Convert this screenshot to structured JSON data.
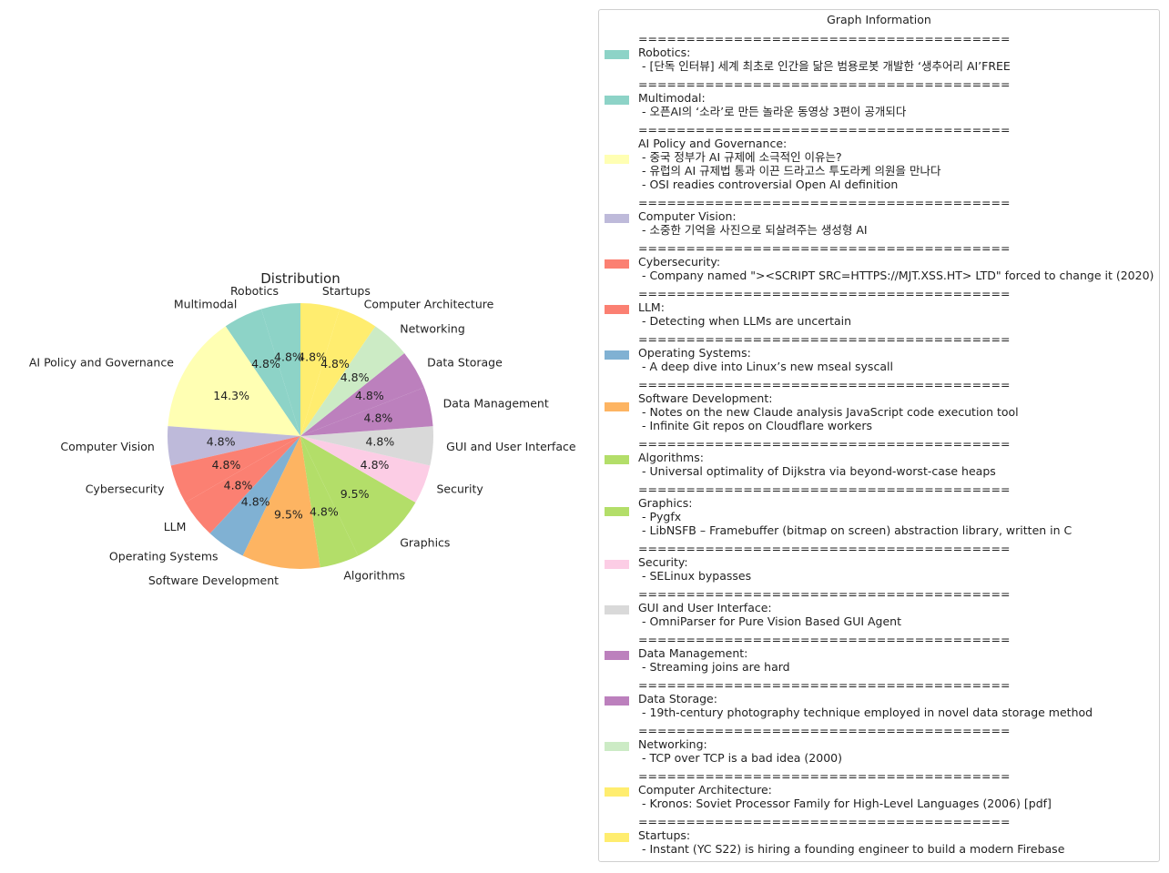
{
  "chart_data": {
    "type": "pie",
    "title": "Distribution",
    "categories": [
      "Robotics",
      "Multimodal",
      "AI Policy and Governance",
      "Computer Vision",
      "Cybersecurity",
      "LLM",
      "Operating Systems",
      "Software Development",
      "Algorithms",
      "Graphics",
      "Security",
      "GUI and User Interface",
      "Data Management",
      "Data Storage",
      "Networking",
      "Computer Architecture",
      "Startups"
    ],
    "values": [
      1,
      1,
      3,
      1,
      1,
      1,
      1,
      2,
      1,
      2,
      1,
      1,
      1,
      1,
      1,
      1,
      1
    ],
    "percent_labels": [
      "4.8%",
      "4.8%",
      "14.3%",
      "4.8%",
      "4.8%",
      "4.8%",
      "4.8%",
      "9.5%",
      "4.8%",
      "9.5%",
      "4.8%",
      "4.8%",
      "4.8%",
      "4.8%",
      "4.8%",
      "4.8%",
      "4.8%"
    ],
    "colors": [
      "#8dd3c7",
      "#8dd3c7",
      "#ffffb3",
      "#bebada",
      "#fb8072",
      "#fb8072",
      "#80b1d3",
      "#fdb462",
      "#b3de69",
      "#b3de69",
      "#fccde5",
      "#d9d9d9",
      "#bc80bd",
      "#bc80bd",
      "#ccebc5",
      "#ffed6f",
      "#ffed6f"
    ],
    "start_angle_deg": 90,
    "direction": "counterclockwise",
    "legend_placement": "right"
  },
  "legend": {
    "title": "Graph Information",
    "separator": "=======================================",
    "entries": [
      {
        "category": "Robotics",
        "color": "#8dd3c7",
        "lines": [
          "Robotics:",
          " - [단독 인터뷰] 세계 최초로 인간을 닮은 범용로봇 개발한 ‘생추어리 AI’FREE"
        ]
      },
      {
        "category": "Multimodal",
        "color": "#8dd3c7",
        "lines": [
          "Multimodal:",
          " - 오픈AI의 ‘소라’로 만든 놀라운 동영상 3편이 공개되다"
        ]
      },
      {
        "category": "AI Policy and Governance",
        "color": "#ffffb3",
        "lines": [
          "AI Policy and Governance:",
          " - 중국 정부가 AI 규제에 소극적인 이유는?",
          " - 유럽의 AI 규제법 통과 이끈 드라고스 투도라케 의원을 만나다",
          " - OSI readies controversial Open AI definition"
        ]
      },
      {
        "category": "Computer Vision",
        "color": "#bebada",
        "lines": [
          "Computer Vision:",
          " - 소중한 기억을 사진으로 되살려주는 생성형 AI"
        ]
      },
      {
        "category": "Cybersecurity",
        "color": "#fb8072",
        "lines": [
          "Cybersecurity:",
          " - Company named \"><SCRIPT SRC=HTTPS://MJT.XSS.HT> LTD\" forced to change it (2020)"
        ]
      },
      {
        "category": "LLM",
        "color": "#fb8072",
        "lines": [
          "LLM:",
          " - Detecting when LLMs are uncertain"
        ]
      },
      {
        "category": "Operating Systems",
        "color": "#80b1d3",
        "lines": [
          "Operating Systems:",
          " - A deep dive into Linux’s new mseal syscall"
        ]
      },
      {
        "category": "Software Development",
        "color": "#fdb462",
        "lines": [
          "Software Development:",
          " - Notes on the new Claude analysis JavaScript code execution tool",
          " - Infinite Git repos on Cloudflare workers"
        ]
      },
      {
        "category": "Algorithms",
        "color": "#b3de69",
        "lines": [
          "Algorithms:",
          " - Universal optimality of Dijkstra via beyond-worst-case heaps"
        ]
      },
      {
        "category": "Graphics",
        "color": "#b3de69",
        "lines": [
          "Graphics:",
          " - Pygfx",
          " - LibNSFB – Framebuffer (bitmap on screen) abstraction library, written in C"
        ]
      },
      {
        "category": "Security",
        "color": "#fccde5",
        "lines": [
          "Security:",
          " - SELinux bypasses"
        ]
      },
      {
        "category": "GUI and User Interface",
        "color": "#d9d9d9",
        "lines": [
          "GUI and User Interface:",
          " - OmniParser for Pure Vision Based GUI Agent"
        ]
      },
      {
        "category": "Data Management",
        "color": "#bc80bd",
        "lines": [
          "Data Management:",
          " - Streaming joins are hard"
        ]
      },
      {
        "category": "Data Storage",
        "color": "#bc80bd",
        "lines": [
          "Data Storage:",
          " - 19th-century photography technique employed in novel data storage method"
        ]
      },
      {
        "category": "Networking",
        "color": "#ccebc5",
        "lines": [
          "Networking:",
          " - TCP over TCP is a bad idea (2000)"
        ]
      },
      {
        "category": "Computer Architecture",
        "color": "#ffed6f",
        "lines": [
          "Computer Architecture:",
          " - Kronos: Soviet Processor Family for High-Level Languages (2006) [pdf]"
        ]
      },
      {
        "category": "Startups",
        "color": "#ffed6f",
        "lines": [
          "Startups:",
          " - Instant (YC S22) is hiring a founding engineer to build a modern Firebase"
        ]
      }
    ]
  }
}
